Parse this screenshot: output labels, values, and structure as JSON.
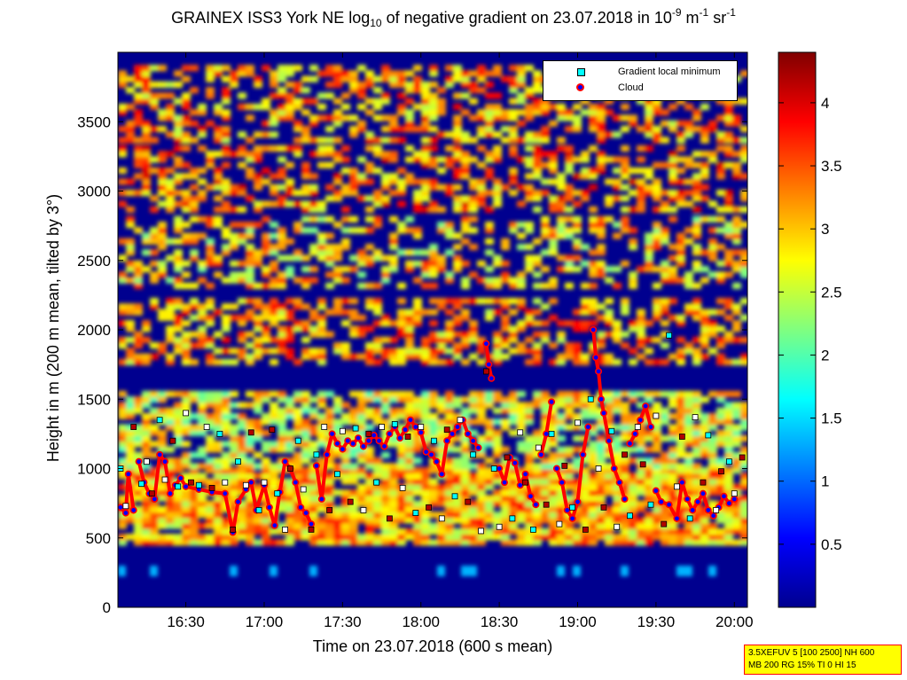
{
  "title": {
    "prefix": "GRAINEX ISS3 York NE log",
    "sub": "10",
    "middle": " of negative gradient on 23.07.2018 in 10",
    "exp1": "-9",
    "unit1": " m",
    "exp2": "-1",
    "unit2": " sr",
    "exp3": "-1"
  },
  "legend": {
    "items": [
      {
        "label": "Gradient local minimum",
        "color": "#00ffff",
        "marker": "square"
      },
      {
        "label": "Cloud",
        "color": "#ff0000",
        "marker": "circle"
      }
    ]
  },
  "info_box": {
    "line1": "3.5XEFUV 5 [100 2500] NH 600",
    "line2": "MB 200 RG 15% TI 0 HI 15"
  },
  "chart_data": {
    "type": "heatmap",
    "xlabel": "Time on 23.07.2018 (600 s mean)",
    "ylabel": "Height in m (200 m mean, tilted by 3°)",
    "x_ticks": [
      "16:30",
      "17:00",
      "17:30",
      "18:00",
      "18:30",
      "19:00",
      "19:30",
      "20:00"
    ],
    "x_range": [
      "16:04",
      "20:05"
    ],
    "y_ticks": [
      0,
      500,
      1000,
      1500,
      2000,
      2500,
      3000,
      3500
    ],
    "ylim": [
      0,
      4000
    ],
    "colorbar": {
      "ticks": [
        "0.5",
        "1",
        "1.5",
        "2",
        "2.5",
        "3",
        "3.5",
        "4"
      ],
      "range": [
        0,
        4.4
      ],
      "colormap": "jet"
    },
    "series": [
      {
        "name": "Gradient local minimum",
        "points": [
          [
            "16:05",
            1000
          ],
          [
            "16:07",
            730
          ],
          [
            "16:10",
            1300
          ],
          [
            "16:13",
            890
          ],
          [
            "16:15",
            1050
          ],
          [
            "16:17",
            820
          ],
          [
            "16:20",
            1350
          ],
          [
            "16:22",
            920
          ],
          [
            "16:25",
            1200
          ],
          [
            "16:27",
            870
          ],
          [
            "16:30",
            1400
          ],
          [
            "16:32",
            900
          ],
          [
            "16:35",
            880
          ],
          [
            "16:38",
            1300
          ],
          [
            "16:40",
            860
          ],
          [
            "16:43",
            1250
          ],
          [
            "16:45",
            900
          ],
          [
            "16:48",
            560
          ],
          [
            "16:50",
            1050
          ],
          [
            "16:53",
            880
          ],
          [
            "16:55",
            1260
          ],
          [
            "16:58",
            700
          ],
          [
            "17:00",
            900
          ],
          [
            "17:03",
            1280
          ],
          [
            "17:05",
            820
          ],
          [
            "17:08",
            560
          ],
          [
            "17:10",
            1000
          ],
          [
            "17:13",
            1200
          ],
          [
            "17:15",
            850
          ],
          [
            "17:18",
            560
          ],
          [
            "17:20",
            1100
          ],
          [
            "17:23",
            1300
          ],
          [
            "17:25",
            700
          ],
          [
            "17:28",
            960
          ],
          [
            "17:30",
            1270
          ],
          [
            "17:33",
            760
          ],
          [
            "17:35",
            1290
          ],
          [
            "17:38",
            700
          ],
          [
            "17:40",
            1250
          ],
          [
            "17:43",
            900
          ],
          [
            "17:45",
            1300
          ],
          [
            "17:48",
            640
          ],
          [
            "17:50",
            1320
          ],
          [
            "17:53",
            860
          ],
          [
            "17:55",
            1230
          ],
          [
            "17:58",
            680
          ],
          [
            "18:00",
            1300
          ],
          [
            "18:03",
            720
          ],
          [
            "18:05",
            1200
          ],
          [
            "18:08",
            640
          ],
          [
            "18:10",
            1280
          ],
          [
            "18:13",
            800
          ],
          [
            "18:15",
            1350
          ],
          [
            "18:18",
            760
          ],
          [
            "18:20",
            1100
          ],
          [
            "18:23",
            550
          ],
          [
            "18:25",
            1700
          ],
          [
            "18:28",
            1000
          ],
          [
            "18:30",
            580
          ],
          [
            "18:33",
            1080
          ],
          [
            "18:35",
            640
          ],
          [
            "18:38",
            1260
          ],
          [
            "18:40",
            900
          ],
          [
            "18:43",
            560
          ],
          [
            "18:45",
            1150
          ],
          [
            "18:48",
            740
          ],
          [
            "18:50",
            1250
          ],
          [
            "18:53",
            600
          ],
          [
            "18:55",
            1020
          ],
          [
            "18:58",
            720
          ],
          [
            "19:00",
            1330
          ],
          [
            "19:03",
            560
          ],
          [
            "19:05",
            1500
          ],
          [
            "19:08",
            1000
          ],
          [
            "19:10",
            720
          ],
          [
            "19:13",
            1270
          ],
          [
            "19:15",
            580
          ],
          [
            "19:18",
            1100
          ],
          [
            "19:20",
            660
          ],
          [
            "19:23",
            1300
          ],
          [
            "19:25",
            1030
          ],
          [
            "19:28",
            740
          ],
          [
            "19:30",
            1380
          ],
          [
            "19:33",
            600
          ],
          [
            "19:35",
            1960
          ],
          [
            "19:38",
            870
          ],
          [
            "19:40",
            1230
          ],
          [
            "19:43",
            640
          ],
          [
            "19:45",
            1370
          ],
          [
            "19:48",
            900
          ],
          [
            "19:50",
            1240
          ],
          [
            "19:53",
            700
          ],
          [
            "19:55",
            980
          ],
          [
            "19:58",
            1050
          ],
          [
            "20:00",
            820
          ],
          [
            "20:03",
            1080
          ]
        ]
      },
      {
        "name": "Cloud",
        "points": [
          [
            "16:05",
            720
          ],
          [
            "16:07",
            680
          ],
          [
            "16:08",
            960
          ],
          [
            "16:10",
            700
          ],
          [
            "16:12",
            1050
          ],
          [
            "16:14",
            900
          ],
          [
            "16:16",
            820
          ],
          [
            "16:18",
            780
          ],
          [
            "16:20",
            1100
          ],
          [
            "16:22",
            1050
          ],
          [
            "16:24",
            820
          ],
          [
            "16:26",
            880
          ],
          [
            "16:28",
            930
          ],
          [
            "16:30",
            870
          ],
          [
            "16:35",
            850
          ],
          [
            "16:40",
            830
          ],
          [
            "16:45",
            820
          ],
          [
            "16:48",
            540
          ],
          [
            "16:50",
            760
          ],
          [
            "16:53",
            850
          ],
          [
            "16:55",
            900
          ],
          [
            "16:57",
            700
          ],
          [
            "17:00",
            880
          ],
          [
            "17:02",
            720
          ],
          [
            "17:04",
            590
          ],
          [
            "17:06",
            830
          ],
          [
            "17:08",
            1050
          ],
          [
            "17:10",
            1000
          ],
          [
            "17:12",
            900
          ],
          [
            "17:14",
            720
          ],
          [
            "17:16",
            680
          ],
          [
            "17:18",
            600
          ],
          [
            "17:20",
            1020
          ],
          [
            "17:22",
            780
          ],
          [
            "17:24",
            1100
          ],
          [
            "17:26",
            1250
          ],
          [
            "17:28",
            1180
          ],
          [
            "17:30",
            1140
          ],
          [
            "17:32",
            1200
          ],
          [
            "17:34",
            1180
          ],
          [
            "17:36",
            1220
          ],
          [
            "17:38",
            1160
          ],
          [
            "17:40",
            1200
          ],
          [
            "17:42",
            1240
          ],
          [
            "17:44",
            1200
          ],
          [
            "17:46",
            1160
          ],
          [
            "17:48",
            1250
          ],
          [
            "17:50",
            1300
          ],
          [
            "17:52",
            1220
          ],
          [
            "17:54",
            1280
          ],
          [
            "17:56",
            1350
          ],
          [
            "17:58",
            1300
          ],
          [
            "18:00",
            1260
          ],
          [
            "18:02",
            1120
          ],
          [
            "18:04",
            1100
          ],
          [
            "18:06",
            1050
          ],
          [
            "18:08",
            960
          ],
          [
            "18:10",
            1200
          ],
          [
            "18:12",
            1250
          ],
          [
            "18:14",
            1300
          ],
          [
            "18:16",
            1350
          ],
          [
            "18:18",
            1250
          ],
          [
            "18:20",
            1200
          ],
          [
            "18:22",
            1150
          ],
          [
            "18:25",
            1900
          ],
          [
            "18:26",
            1750
          ],
          [
            "18:27",
            1650
          ],
          [
            "18:30",
            1000
          ],
          [
            "18:32",
            900
          ],
          [
            "18:34",
            1080
          ],
          [
            "18:36",
            1040
          ],
          [
            "18:38",
            880
          ],
          [
            "18:40",
            960
          ],
          [
            "18:42",
            800
          ],
          [
            "18:44",
            740
          ],
          [
            "18:46",
            1100
          ],
          [
            "18:48",
            1250
          ],
          [
            "18:50",
            1480
          ],
          [
            "18:52",
            1000
          ],
          [
            "18:54",
            900
          ],
          [
            "18:56",
            700
          ],
          [
            "18:58",
            640
          ],
          [
            "19:00",
            760
          ],
          [
            "19:02",
            1100
          ],
          [
            "19:04",
            1300
          ],
          [
            "19:06",
            2000
          ],
          [
            "19:07",
            1800
          ],
          [
            "19:08",
            1700
          ],
          [
            "19:09",
            1500
          ],
          [
            "19:10",
            1400
          ],
          [
            "19:12",
            1200
          ],
          [
            "19:14",
            1000
          ],
          [
            "19:16",
            900
          ],
          [
            "19:18",
            780
          ],
          [
            "19:20",
            1180
          ],
          [
            "19:22",
            1250
          ],
          [
            "19:24",
            1350
          ],
          [
            "19:26",
            1450
          ],
          [
            "19:28",
            1300
          ],
          [
            "19:30",
            840
          ],
          [
            "19:32",
            760
          ],
          [
            "19:35",
            740
          ],
          [
            "19:38",
            640
          ],
          [
            "19:40",
            900
          ],
          [
            "19:42",
            780
          ],
          [
            "19:44",
            700
          ],
          [
            "19:46",
            760
          ],
          [
            "19:48",
            820
          ],
          [
            "19:50",
            700
          ],
          [
            "19:52",
            660
          ],
          [
            "19:54",
            720
          ],
          [
            "19:56",
            800
          ],
          [
            "19:58",
            750
          ],
          [
            "20:00",
            780
          ]
        ]
      }
    ]
  }
}
